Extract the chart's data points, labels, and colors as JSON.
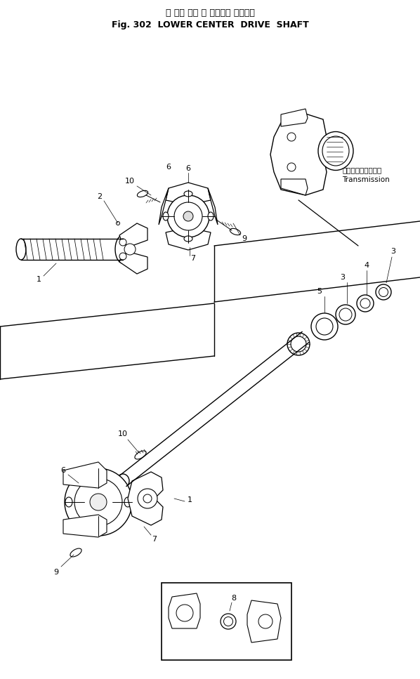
{
  "title_jp": "ロ ワー セン タ ドライブ シャフト",
  "title_en": "Fig. 302  LOWER CENTER  DRIVE  SHAFT",
  "bg_color": "#ffffff",
  "line_color": "#000000",
  "fig_width": 5.98,
  "fig_height": 9.67,
  "dpi": 100,
  "transmission_label_jp": "トランスミッション",
  "transmission_label_en": "Transmission"
}
